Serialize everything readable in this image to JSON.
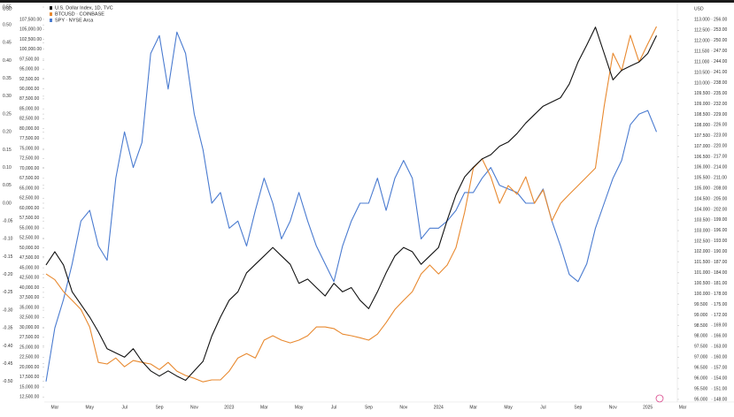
{
  "chart_data": {
    "type": "line",
    "axis_unit_left": "USD",
    "axis_unit_right": "USD",
    "categories": [
      null,
      "Mar",
      null,
      null,
      null,
      "May",
      null,
      null,
      null,
      "Jul",
      null,
      null,
      null,
      "Sep",
      null,
      null,
      null,
      "Nov",
      null,
      null,
      null,
      "2023",
      null,
      null,
      null,
      "Mar",
      null,
      null,
      null,
      "May",
      null,
      null,
      null,
      "Jul",
      null,
      null,
      null,
      "Sep",
      null,
      null,
      null,
      "Nov",
      null,
      null,
      null,
      "2024",
      null,
      null,
      null,
      "Mar",
      null,
      null,
      null,
      "May",
      null,
      null,
      null,
      "Jul",
      null,
      null,
      null,
      "Sep",
      null,
      null,
      null,
      "Nov",
      null,
      null,
      null,
      "2025",
      null,
      null,
      null,
      "Mar"
    ],
    "series": [
      {
        "name": "SPY · NYSE Arca",
        "color": "#4a7bd0",
        "axis": "y",
        "values": [
          -0.5,
          -0.35,
          -0.27,
          -0.17,
          -0.05,
          -0.02,
          -0.12,
          -0.16,
          0.07,
          0.2,
          0.1,
          0.17,
          0.42,
          0.47,
          0.32,
          0.48,
          0.42,
          0.25,
          0.15,
          0.0,
          0.03,
          -0.07,
          -0.05,
          -0.12,
          -0.02,
          0.07,
          0.0,
          -0.1,
          -0.05,
          0.03,
          -0.05,
          -0.12,
          -0.17,
          -0.22,
          -0.12,
          -0.05,
          0.0,
          0.0,
          0.07,
          -0.02,
          0.07,
          0.12,
          0.07,
          -0.1,
          -0.07,
          -0.07,
          -0.05,
          -0.02,
          0.03,
          0.03,
          0.07,
          0.1,
          0.05,
          0.04,
          0.03,
          0.0,
          0.0,
          0.04,
          -0.05,
          -0.12,
          -0.2,
          -0.22,
          -0.17,
          -0.07,
          0.0,
          0.07,
          0.12,
          0.22,
          0.25,
          0.26,
          0.2,
          null,
          null,
          null
        ]
      },
      {
        "name": "BTCUSD · COINBASE",
        "color": "#e8892f",
        "axis": "y2",
        "values": [
          43450,
          42000,
          39000,
          36800,
          34500,
          30100,
          21200,
          20800,
          22300,
          20100,
          21650,
          21200,
          20800,
          19400,
          21200,
          19000,
          17900,
          17200,
          16300,
          16800,
          16800,
          19000,
          22300,
          23400,
          22300,
          26800,
          27900,
          26800,
          26100,
          26800,
          27900,
          30100,
          30100,
          29700,
          28300,
          27900,
          27400,
          26800,
          28300,
          31200,
          34500,
          36800,
          39000,
          43450,
          45700,
          43450,
          45700,
          50100,
          59000,
          70100,
          72400,
          67900,
          61200,
          65700,
          63500,
          67900,
          61200,
          64600,
          56800,
          61200,
          63500,
          65700,
          67900,
          70100,
          85700,
          99000,
          94600,
          103500,
          96800,
          101300,
          105700,
          null,
          null,
          null
        ]
      },
      {
        "name": "U.S. Dollar Index, 1D, TVC",
        "color": "#111111",
        "axis": "y3",
        "values": [
          101.37,
          102.0,
          101.37,
          100.1,
          99.5,
          98.9,
          98.2,
          97.4,
          97.2,
          97.0,
          97.4,
          96.8,
          96.35,
          96.1,
          96.35,
          96.1,
          95.9,
          96.35,
          96.8,
          98.0,
          98.9,
          99.7,
          100.1,
          101.0,
          101.4,
          101.8,
          102.2,
          101.8,
          101.4,
          100.5,
          100.7,
          100.3,
          99.9,
          100.5,
          100.1,
          100.3,
          99.7,
          99.3,
          100.1,
          101.0,
          101.8,
          102.2,
          102.0,
          101.4,
          101.8,
          102.2,
          103.5,
          104.7,
          105.55,
          106.0,
          106.4,
          106.6,
          107.0,
          107.2,
          107.6,
          108.1,
          108.5,
          108.9,
          109.1,
          109.3,
          109.95,
          111.0,
          111.8,
          112.65,
          111.4,
          110.15,
          110.6,
          110.8,
          111.0,
          111.4,
          112.25,
          null,
          null,
          null
        ]
      }
    ],
    "ylim": [
      -0.55,
      0.55
    ],
    "yticks": [
      0.55,
      {
        "value": 0.5,
        "label": "0.50"
      },
      0.45,
      {
        "value": 0.4,
        "label": "0.40"
      },
      0.35,
      {
        "value": 0.3,
        "label": "0.30"
      },
      0.25,
      {
        "value": 0.2,
        "label": "0.20"
      },
      0.15,
      {
        "value": 0.1,
        "label": "0.10"
      },
      0.05,
      {
        "value": 0,
        "label": "0.00"
      },
      -0.05,
      {
        "value": -0.1,
        "label": "-0.10"
      },
      -0.15,
      {
        "value": -0.2,
        "label": "-0.20"
      },
      -0.25,
      {
        "value": -0.3,
        "label": "-0.30"
      },
      -0.35,
      {
        "value": -0.4,
        "label": "-0.40"
      },
      -0.45,
      {
        "value": -0.5,
        "label": "-0.50"
      }
    ],
    "y2lim": [
      11900,
      110600
    ],
    "y2ticks": [
      {
        "value": 107500,
        "label": "107,500.00"
      },
      {
        "value": 105000,
        "label": "105,000.00"
      },
      {
        "value": 102500,
        "label": "102,500.00"
      },
      {
        "value": 100000,
        "label": "100,000.00"
      },
      {
        "value": 97500,
        "label": "97,500.00"
      },
      {
        "value": 95000,
        "label": "95,000.00"
      },
      {
        "value": 92500,
        "label": "92,500.00"
      },
      {
        "value": 90000,
        "label": "90,000.00"
      },
      {
        "value": 87500,
        "label": "87,500.00"
      },
      {
        "value": 85000,
        "label": "85,000.00"
      },
      {
        "value": 82500,
        "label": "82,500.00"
      },
      {
        "value": 80000,
        "label": "80,000.00"
      },
      {
        "value": 77500,
        "label": "77,500.00"
      },
      {
        "value": 75000,
        "label": "75,000.00"
      },
      {
        "value": 72500,
        "label": "72,500.00"
      },
      {
        "value": 70000,
        "label": "70,000.00"
      },
      {
        "value": 67500,
        "label": "67,500.00"
      },
      {
        "value": 65000,
        "label": "65,000.00"
      },
      {
        "value": 62500,
        "label": "62,500.00"
      },
      {
        "value": 60000,
        "label": "60,000.00"
      },
      {
        "value": 57500,
        "label": "57,500.00"
      },
      {
        "value": 55000,
        "label": "55,000.00"
      },
      {
        "value": 52500,
        "label": "52,500.00"
      },
      {
        "value": 50000,
        "label": "50,000.00"
      },
      {
        "value": 47500,
        "label": "47,500.00"
      },
      {
        "value": 45000,
        "label": "45,000.00"
      },
      {
        "value": 42500,
        "label": "42,500.00"
      },
      {
        "value": 40000,
        "label": "40,000.00"
      },
      {
        "value": 37500,
        "label": "37,500.00"
      },
      {
        "value": 35000,
        "label": "35,000.00"
      },
      {
        "value": 32500,
        "label": "32,500.00"
      },
      {
        "value": 30000,
        "label": "30,000.00"
      },
      {
        "value": 27500,
        "label": "27,500.00"
      },
      {
        "value": 25000,
        "label": "25,000.00"
      },
      {
        "value": 22500,
        "label": "22,500.00"
      },
      {
        "value": 20000,
        "label": "20,000.00"
      },
      {
        "value": 17500,
        "label": "17,500.00"
      },
      {
        "value": 15000,
        "label": "15,000.00"
      },
      {
        "value": 12500,
        "label": "12,500.00"
      }
    ],
    "y3lim": [
      95,
      113.6
    ],
    "y3ticks": [
      {
        "value": 113,
        "label": "113.000"
      },
      {
        "value": 112.5,
        "label": "112.500"
      },
      {
        "value": 112,
        "label": "112.000"
      },
      {
        "value": 111.5,
        "label": "111.500"
      },
      {
        "value": 111,
        "label": "111.000"
      },
      {
        "value": 110.5,
        "label": "110.500"
      },
      {
        "value": 110,
        "label": "110.000"
      },
      {
        "value": 109.5,
        "label": "109.500"
      },
      {
        "value": 109,
        "label": "109.000"
      },
      {
        "value": 108.5,
        "label": "108.500"
      },
      {
        "value": 108,
        "label": "108.000"
      },
      {
        "value": 107.5,
        "label": "107.500"
      },
      {
        "value": 107,
        "label": "107.000"
      },
      {
        "value": 106.5,
        "label": "106.500"
      },
      {
        "value": 106,
        "label": "106.000"
      },
      {
        "value": 105.5,
        "label": "105.500"
      },
      {
        "value": 105,
        "label": "105.000"
      },
      {
        "value": 104.5,
        "label": "104.500"
      },
      {
        "value": 104,
        "label": "104.000"
      },
      {
        "value": 103.5,
        "label": "103.500"
      },
      {
        "value": 103,
        "label": "103.000"
      },
      {
        "value": 102.5,
        "label": "102.500"
      },
      {
        "value": 102,
        "label": "102.000"
      },
      {
        "value": 101.5,
        "label": "101.500"
      },
      {
        "value": 101,
        "label": "101.000"
      },
      {
        "value": 100.5,
        "label": "100.500"
      },
      {
        "value": 100,
        "label": "100.000"
      },
      {
        "value": 99.5,
        "label": "99.500"
      },
      {
        "value": 99,
        "label": "99.000"
      },
      {
        "value": 98.5,
        "label": "98.500"
      },
      {
        "value": 98,
        "label": "98.000"
      },
      {
        "value": 97.5,
        "label": "97.500"
      },
      {
        "value": 97,
        "label": "97.000"
      },
      {
        "value": 96.5,
        "label": "96.500"
      },
      {
        "value": 96,
        "label": "96.000"
      },
      {
        "value": 95.5,
        "label": "95.500"
      },
      {
        "value": 95,
        "label": "95.000"
      }
    ],
    "y4lim": [
      148,
      259.5
    ],
    "y4ticks": [
      {
        "value": 256,
        "label": "256.00"
      },
      {
        "value": 253,
        "label": "253.00"
      },
      {
        "value": 250,
        "label": "250.00"
      },
      {
        "value": 247,
        "label": "247.00"
      },
      {
        "value": 244,
        "label": "244.00"
      },
      {
        "value": 241,
        "label": "241.00"
      },
      {
        "value": 238,
        "label": "238.00"
      },
      {
        "value": 235,
        "label": "235.00"
      },
      {
        "value": 232,
        "label": "232.00"
      },
      {
        "value": 229,
        "label": "229.00"
      },
      {
        "value": 226,
        "label": "226.00"
      },
      {
        "value": 223,
        "label": "223.00"
      },
      {
        "value": 220,
        "label": "220.00"
      },
      {
        "value": 217,
        "label": "217.00"
      },
      {
        "value": 214,
        "label": "214.00"
      },
      {
        "value": 211,
        "label": "211.00"
      },
      {
        "value": 208,
        "label": "208.00"
      },
      {
        "value": 205,
        "label": "205.00"
      },
      {
        "value": 202,
        "label": "202.00"
      },
      {
        "value": 199,
        "label": "199.00"
      },
      {
        "value": 196,
        "label": "196.00"
      },
      {
        "value": 193,
        "label": "193.00"
      },
      {
        "value": 190,
        "label": "190.00"
      },
      {
        "value": 187,
        "label": "187.00"
      },
      {
        "value": 184,
        "label": "184.00"
      },
      {
        "value": 181,
        "label": "181.00"
      },
      {
        "value": 178,
        "label": "178.00"
      },
      {
        "value": 175,
        "label": "175.00"
      },
      {
        "value": 172,
        "label": "172.00"
      },
      {
        "value": 169,
        "label": "169.00"
      },
      {
        "value": 166,
        "label": "166.00"
      },
      {
        "value": 163,
        "label": "163.00"
      },
      {
        "value": 160,
        "label": "160.00"
      },
      {
        "value": 157,
        "label": "157.00"
      },
      {
        "value": 154,
        "label": "154.00"
      },
      {
        "value": 151,
        "label": "151.00"
      },
      {
        "value": 148,
        "label": "148.00"
      }
    ],
    "grid": false
  }
}
